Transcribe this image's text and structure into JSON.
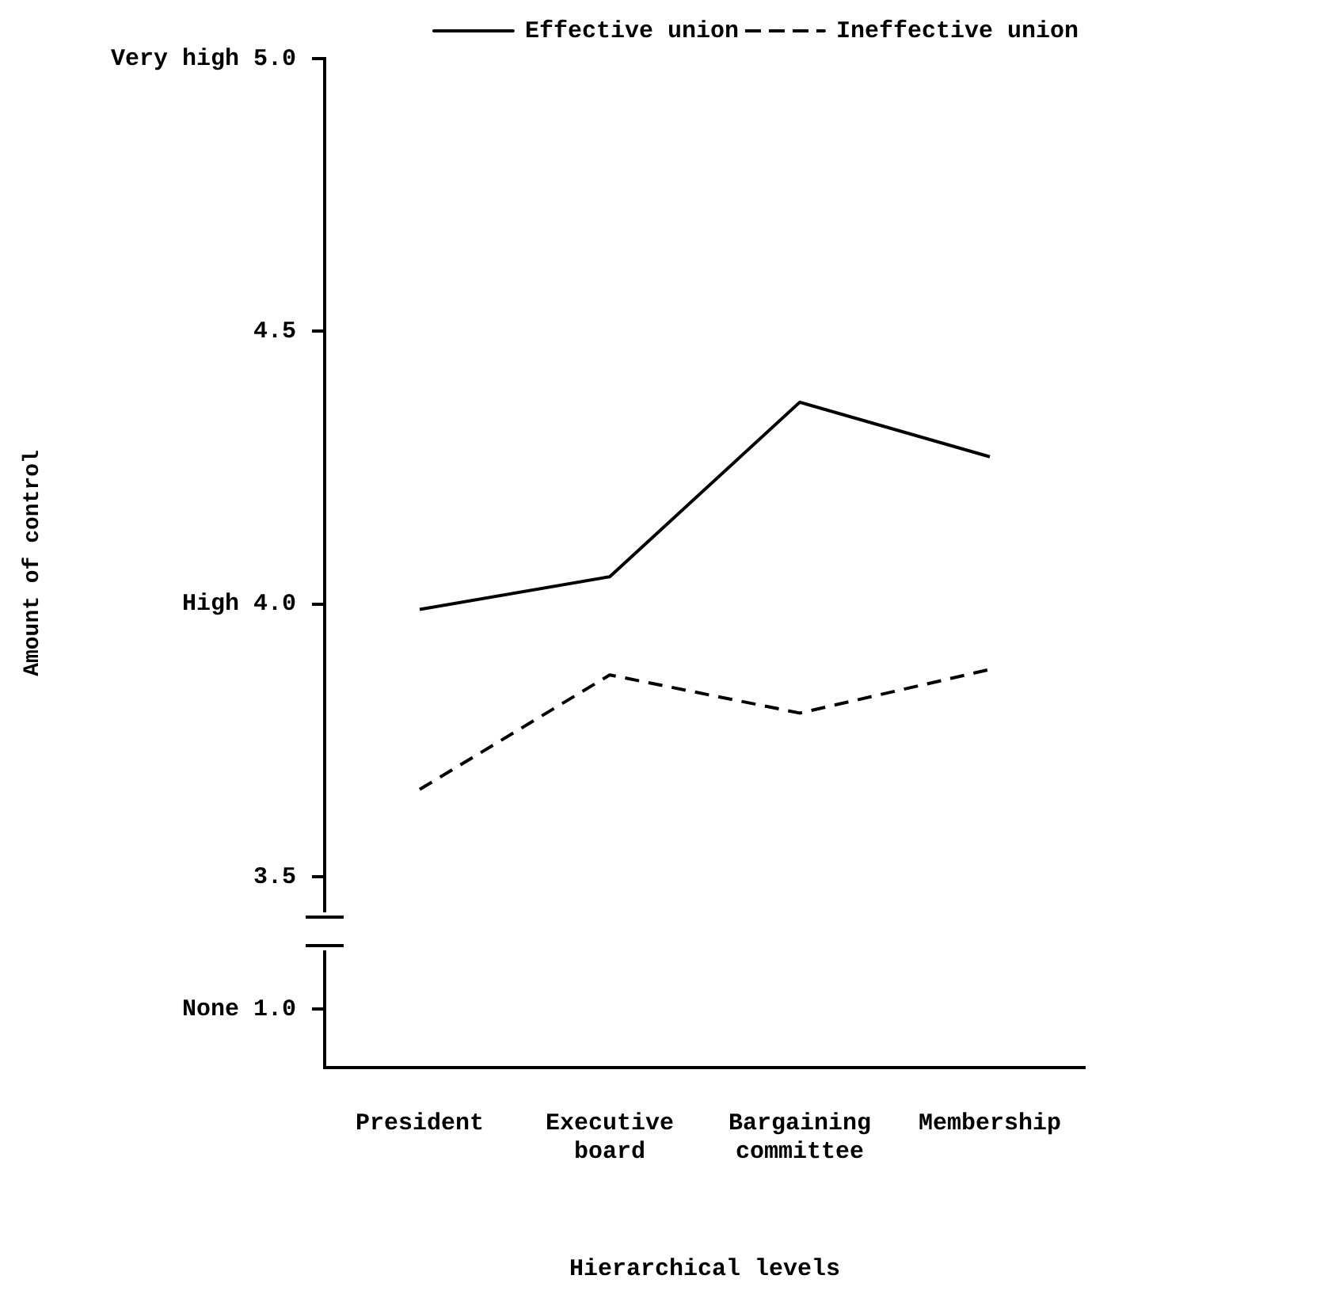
{
  "chart_data": {
    "type": "line",
    "ylabel": "Amount of control",
    "xlabel": "Hierarchical levels",
    "categories": [
      "President",
      "Executive board",
      "Bargaining committee",
      "Membership"
    ],
    "series": [
      {
        "name": "Effective union",
        "color": "#000000",
        "line_style": "solid",
        "values": [
          3.99,
          4.05,
          4.37,
          4.27
        ]
      },
      {
        "name": "Ineffective union",
        "color": "#000000",
        "line_style": "dashed",
        "values": [
          3.66,
          3.87,
          3.8,
          3.88
        ]
      }
    ],
    "ylim": [
      3.15,
      5.0
    ],
    "yticks": [
      {
        "value": 3.5,
        "label": "3.5"
      },
      {
        "value": 4.0,
        "label": "High 4.0"
      },
      {
        "value": 4.5,
        "label": "4.5"
      },
      {
        "value": 5.0,
        "label": "Very high 5.0"
      }
    ],
    "annotations": [
      "None 1.0"
    ],
    "legend": "top right",
    "grid": false
  }
}
